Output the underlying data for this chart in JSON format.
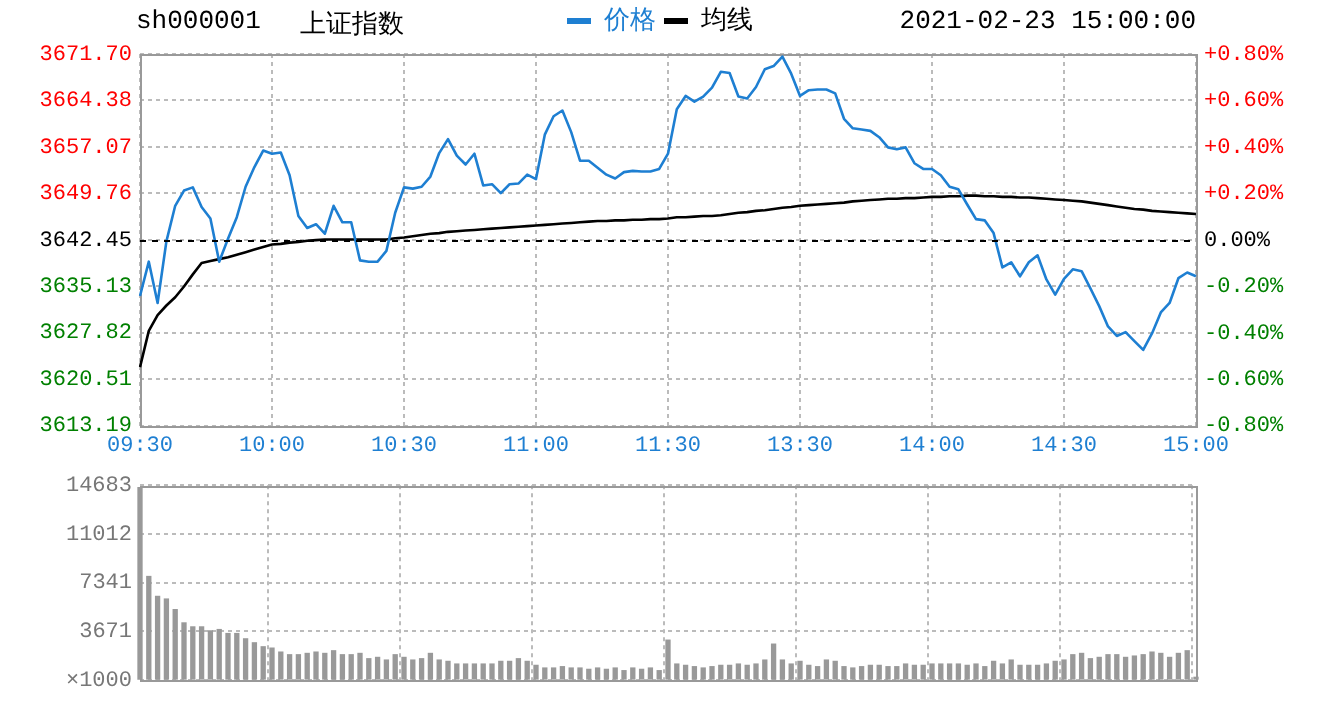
{
  "chart_data": [
    {
      "type": "line",
      "title": "上证指数",
      "subtitle": "sh000001",
      "annotations": [
        "2021-02-23 15:00:00"
      ],
      "legend": "top",
      "grid": true,
      "categories": [
        "09:30",
        null,
        null,
        null,
        null,
        null,
        null,
        null,
        null,
        null,
        null,
        null,
        null,
        null,
        null,
        "10:00",
        null,
        null,
        null,
        null,
        null,
        null,
        null,
        null,
        null,
        null,
        null,
        null,
        null,
        null,
        "10:30",
        null,
        null,
        null,
        null,
        null,
        null,
        null,
        null,
        null,
        null,
        null,
        null,
        null,
        null,
        "11:00",
        null,
        null,
        null,
        null,
        null,
        null,
        null,
        null,
        null,
        null,
        null,
        null,
        null,
        null,
        "11:30",
        null,
        null,
        null,
        null,
        null,
        null,
        null,
        null,
        null,
        null,
        null,
        null,
        null,
        null,
        "13:30",
        null,
        null,
        null,
        null,
        null,
        null,
        null,
        null,
        null,
        null,
        null,
        null,
        null,
        null,
        "14:00",
        null,
        null,
        null,
        null,
        null,
        null,
        null,
        null,
        null,
        null,
        null,
        null,
        null,
        null,
        "14:30",
        null,
        null,
        null,
        null,
        null,
        null,
        null,
        null,
        null,
        null,
        null,
        null,
        null,
        null,
        "15:00"
      ],
      "series": [
        {
          "name": "价格",
          "color": "#1e7fd2",
          "values": [
            3633.6,
            3639.0,
            3632.5,
            3642.2,
            3647.8,
            3650.2,
            3650.7,
            3647.6,
            3645.8,
            3639.0,
            3642.6,
            3646.0,
            3650.8,
            3653.9,
            3656.5,
            3656.0,
            3656.2,
            3652.6,
            3646.2,
            3644.3,
            3644.9,
            3643.4,
            3647.8,
            3645.2,
            3645.2,
            3639.2,
            3639.0,
            3639.0,
            3640.7,
            3646.7,
            3650.7,
            3650.5,
            3650.8,
            3652.4,
            3656.1,
            3658.3,
            3655.7,
            3654.3,
            3656.0,
            3651.0,
            3651.2,
            3649.8,
            3651.2,
            3651.3,
            3652.7,
            3652.0,
            3659.0,
            3661.9,
            3662.8,
            3659.4,
            3654.9,
            3654.9,
            3653.8,
            3652.7,
            3652.1,
            3653.1,
            3653.3,
            3653.2,
            3653.2,
            3653.6,
            3656.0,
            3663.0,
            3665.1,
            3664.2,
            3665.0,
            3666.4,
            3668.9,
            3668.7,
            3665.0,
            3664.7,
            3666.5,
            3669.3,
            3669.8,
            3671.3,
            3668.6,
            3665.1,
            3666.0,
            3666.1,
            3666.1,
            3665.5,
            3661.5,
            3660.0,
            3659.8,
            3659.6,
            3658.6,
            3657.0,
            3656.7,
            3657.0,
            3654.5,
            3653.6,
            3653.6,
            3652.6,
            3650.8,
            3650.4,
            3648.0,
            3645.7,
            3645.5,
            3643.5,
            3638.1,
            3638.9,
            3636.7,
            3638.9,
            3640.0,
            3636.2,
            3633.8,
            3636.3,
            3637.8,
            3637.5,
            3634.8,
            3632.0,
            3628.8,
            3627.3,
            3627.9,
            3626.5,
            3625.1,
            3627.7,
            3631.0,
            3632.5,
            3636.4,
            3637.3,
            3636.7
          ]
        },
        {
          "name": "均线",
          "color": "#000000",
          "values": [
            3622.4,
            3628.1,
            3630.6,
            3632.1,
            3633.4,
            3635.1,
            3637.0,
            3638.8,
            3639.1,
            3639.4,
            3639.7,
            3640.1,
            3640.5,
            3640.9,
            3641.3,
            3641.7,
            3641.8,
            3642.0,
            3642.1,
            3642.3,
            3642.4,
            3642.5,
            3642.5,
            3642.5,
            3642.5,
            3642.5,
            3642.5,
            3642.5,
            3642.5,
            3642.7,
            3642.8,
            3643.0,
            3643.2,
            3643.4,
            3643.5,
            3643.7,
            3643.8,
            3643.9,
            3644.0,
            3644.1,
            3644.2,
            3644.3,
            3644.4,
            3644.5,
            3644.6,
            3644.7,
            3644.8,
            3644.9,
            3645.0,
            3645.1,
            3645.2,
            3645.3,
            3645.4,
            3645.4,
            3645.5,
            3645.5,
            3645.6,
            3645.6,
            3645.7,
            3645.7,
            3645.8,
            3646.0,
            3646.0,
            3646.1,
            3646.2,
            3646.2,
            3646.3,
            3646.5,
            3646.7,
            3646.8,
            3647.0,
            3647.1,
            3647.3,
            3647.5,
            3647.6,
            3647.8,
            3647.9,
            3648.0,
            3648.1,
            3648.2,
            3648.3,
            3648.5,
            3648.6,
            3648.7,
            3648.8,
            3648.9,
            3648.9,
            3649.0,
            3649.0,
            3649.1,
            3649.2,
            3649.2,
            3649.3,
            3649.3,
            3649.4,
            3649.4,
            3649.3,
            3649.3,
            3649.2,
            3649.2,
            3649.1,
            3649.1,
            3649.0,
            3648.9,
            3648.8,
            3648.7,
            3648.6,
            3648.5,
            3648.3,
            3648.1,
            3647.9,
            3647.7,
            3647.5,
            3647.3,
            3647.2,
            3647.0,
            3646.9,
            3646.8,
            3646.7,
            3646.6,
            3646.5
          ]
        }
      ],
      "ylim": [
        3613.19,
        3671.7
      ],
      "yticks": [
        3613.19,
        3620.51,
        3627.82,
        3635.13,
        3642.45,
        3649.76,
        3657.07,
        3664.38,
        {
          "value": 3671.7,
          "label": "3671.70"
        }
      ],
      "y2lim": [
        -0.8,
        0.8
      ],
      "y2ticks": [
        {
          "value": -0.8,
          "label": "-0.80%"
        },
        {
          "value": -0.6,
          "label": "-0.60%"
        },
        {
          "value": -0.4,
          "label": "-0.40%"
        },
        {
          "value": -0.2,
          "label": "-0.20%"
        },
        {
          "value": 0,
          "label": "0.00%"
        },
        {
          "value": 0.2,
          "label": "+0.20%"
        },
        {
          "value": 0.4,
          "label": "+0.40%"
        },
        {
          "value": 0.6,
          "label": "+0.60%"
        },
        {
          "value": 0.8,
          "label": "+0.80%"
        }
      ],
      "ref_lines": [
        {
          "axis": "y",
          "value": 3642.45,
          "color": "#000000",
          "line_style": "dashed"
        }
      ]
    },
    {
      "type": "bar",
      "color": "#999999",
      "grid": true,
      "tick_labels": "y",
      "ylabel": "×1000",
      "categories": [
        null,
        null,
        null,
        null,
        null,
        null,
        null,
        null,
        null,
        null,
        null,
        null,
        null,
        null,
        null,
        null,
        null,
        null,
        null,
        null,
        null,
        null,
        null,
        null,
        null,
        null,
        null,
        null,
        null,
        null,
        null,
        null,
        null,
        null,
        null,
        null,
        null,
        null,
        null,
        null,
        null,
        null,
        null,
        null,
        null,
        null,
        null,
        null,
        null,
        null,
        null,
        null,
        null,
        null,
        null,
        null,
        null,
        null,
        null,
        null,
        null,
        null,
        null,
        null,
        null,
        null,
        null,
        null,
        null,
        null,
        null,
        null,
        null,
        null,
        null,
        null,
        null,
        null,
        null,
        null,
        null,
        null,
        null,
        null,
        null,
        null,
        null,
        null,
        null,
        null,
        null,
        null,
        null,
        null,
        null,
        null,
        null,
        null,
        null,
        null,
        null,
        null,
        null,
        null,
        null,
        null,
        null,
        null,
        null,
        null,
        null,
        null,
        null,
        null,
        null,
        null,
        null,
        null,
        null,
        null,
        null
      ],
      "values": [
        14500,
        7800,
        6300,
        6100,
        5300,
        4300,
        4000,
        4000,
        3700,
        3800,
        3500,
        3500,
        3100,
        2800,
        2500,
        2400,
        2100,
        1900,
        1900,
        2000,
        2100,
        2000,
        2200,
        1900,
        1900,
        2000,
        1600,
        1700,
        1500,
        1900,
        1700,
        1500,
        1600,
        2000,
        1500,
        1400,
        1200,
        1200,
        1200,
        1200,
        1200,
        1400,
        1400,
        1600,
        1400,
        1100,
        900,
        900,
        1000,
        900,
        900,
        800,
        900,
        800,
        900,
        700,
        900,
        800,
        900,
        700,
        3000,
        1200,
        1100,
        1000,
        900,
        1000,
        1100,
        1100,
        1200,
        1100,
        1200,
        1500,
        2700,
        1500,
        1200,
        1400,
        1100,
        1000,
        1500,
        1400,
        1000,
        900,
        1000,
        1100,
        1100,
        1000,
        1000,
        1200,
        1100,
        1100,
        1200,
        1200,
        1200,
        1200,
        1100,
        1200,
        1000,
        1400,
        1200,
        1500,
        1100,
        1100,
        1100,
        1200,
        1400,
        1500,
        1900,
        2000,
        1600,
        1700,
        1900,
        1900,
        1700,
        1800,
        1900,
        2100,
        2000,
        1700,
        2000,
        2200,
        200
      ],
      "ylim": [
        0,
        14683
      ],
      "yticks": [
        {
          "value": 0,
          "label": null
        },
        3671,
        7341,
        11012,
        14683
      ]
    }
  ]
}
